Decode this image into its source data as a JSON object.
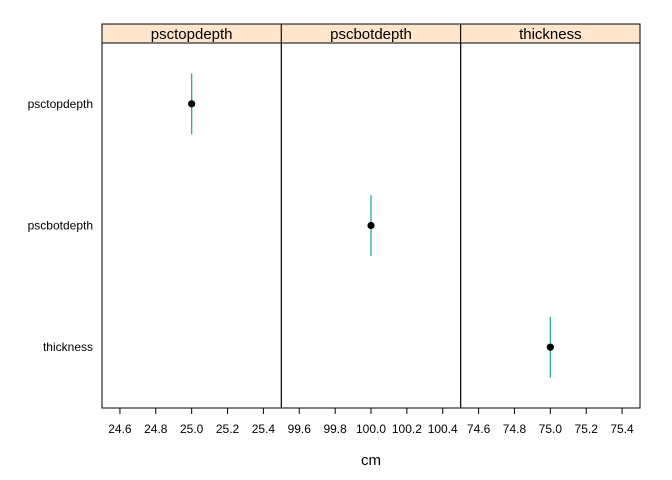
{
  "chart_data": {
    "type": "scatter",
    "xlabel": "cm",
    "y_categories": [
      "psctopdepth",
      "pscbotdepth",
      "thickness"
    ],
    "colors": {
      "strip_fill": "#FFE5CC",
      "error_bar": "#2CA6A4",
      "point": "#000000",
      "frame": "#000000"
    },
    "panels": [
      {
        "title": "psctopdepth",
        "xlim": [
          24.5,
          25.5
        ],
        "ticks": [
          "24.6",
          "24.8",
          "25.0",
          "25.2",
          "25.4"
        ],
        "point": {
          "category": "psctopdepth",
          "x": 25.0,
          "y_low": 0.75,
          "y_high": 1.25
        }
      },
      {
        "title": "pscbotdepth",
        "xlim": [
          99.5,
          100.5
        ],
        "ticks": [
          "99.6",
          "99.8",
          "100.0",
          "100.2",
          "100.4"
        ],
        "point": {
          "category": "pscbotdepth",
          "x": 100.0,
          "y_low": 1.75,
          "y_high": 2.25
        }
      },
      {
        "title": "thickness",
        "xlim": [
          74.5,
          75.5
        ],
        "ticks": [
          "74.6",
          "74.8",
          "75.0",
          "75.2",
          "75.4"
        ],
        "point": {
          "category": "thickness",
          "x": 75.0,
          "y_low": 2.75,
          "y_high": 3.25
        }
      }
    ]
  }
}
